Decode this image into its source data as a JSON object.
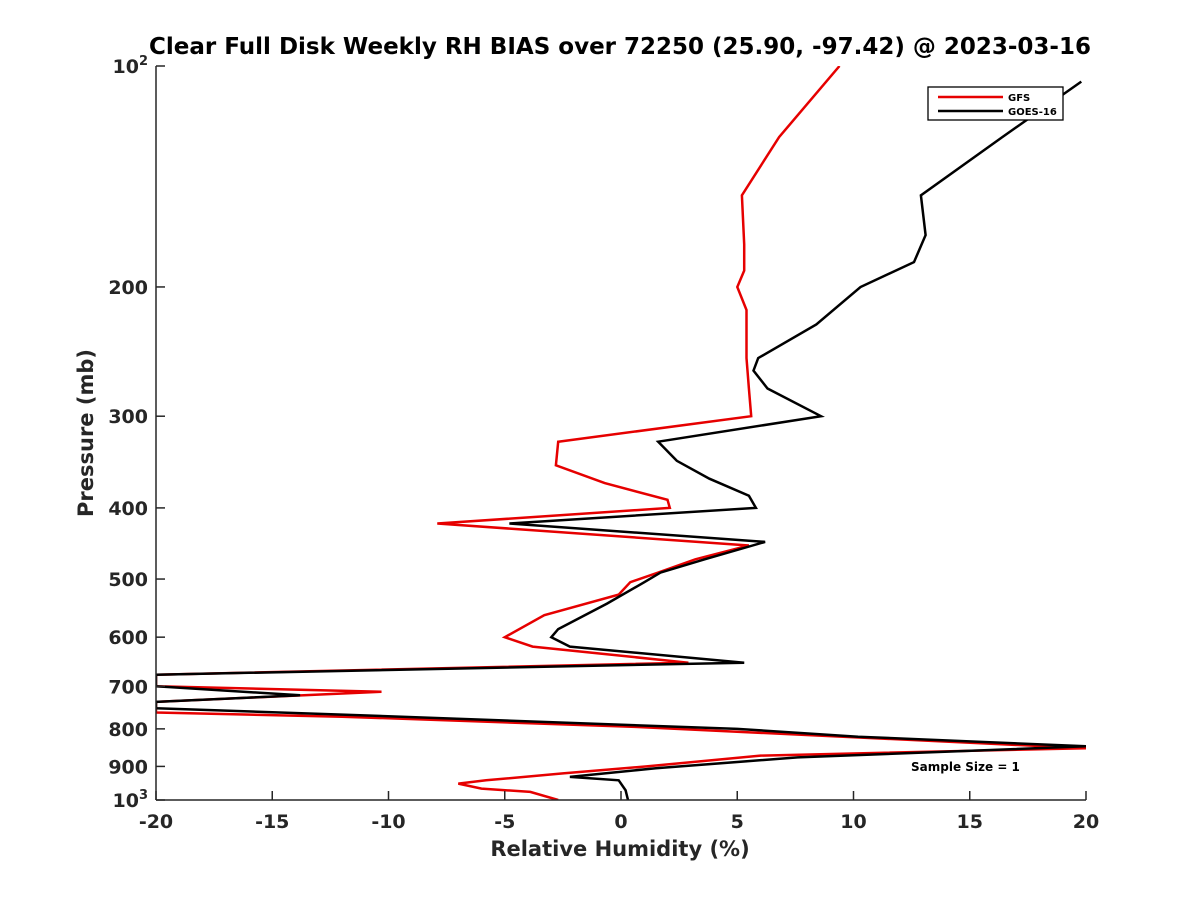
{
  "chart_data": {
    "type": "line",
    "title": "Clear Full Disk Weekly RH BIAS over 72250 (25.90, -97.42) @ 2023-03-16",
    "xlabel": "Relative Humidity (%)",
    "ylabel": "Pressure (mb)",
    "xlim": [
      -20,
      20
    ],
    "ylim": [
      100,
      1000
    ],
    "y_scale": "log",
    "y_reversed": true,
    "x_ticks": [
      "-20",
      "-15",
      "-10",
      "-5",
      "0",
      "5",
      "10",
      "15",
      "20"
    ],
    "y_ticks": [
      {
        "value": 100,
        "label": "10",
        "sup": "2"
      },
      {
        "value": 200,
        "label": "200",
        "sup": ""
      },
      {
        "value": 300,
        "label": "300",
        "sup": ""
      },
      {
        "value": 400,
        "label": "400",
        "sup": ""
      },
      {
        "value": 500,
        "label": "500",
        "sup": ""
      },
      {
        "value": 600,
        "label": "600",
        "sup": ""
      },
      {
        "value": 700,
        "label": "700",
        "sup": ""
      },
      {
        "value": 800,
        "label": "800",
        "sup": ""
      },
      {
        "value": 900,
        "label": "900",
        "sup": ""
      },
      {
        "value": 1000,
        "label": "10",
        "sup": "3"
      }
    ],
    "grid": false,
    "legend_position": "top-right",
    "annotation": "Sample Size = 1",
    "series": [
      {
        "name": "GFS",
        "color": "#e60000",
        "points": [
          [
            9.4,
            100
          ],
          [
            6.8,
            125
          ],
          [
            5.2,
            150
          ],
          [
            5.3,
            175
          ],
          [
            5.3,
            190
          ],
          [
            5.0,
            200
          ],
          [
            5.4,
            215
          ],
          [
            5.4,
            250
          ],
          [
            5.5,
            275
          ],
          [
            5.6,
            300
          ],
          [
            -2.7,
            325
          ],
          [
            -2.8,
            350
          ],
          [
            -0.7,
            370
          ],
          [
            2.0,
            390
          ],
          [
            2.1,
            400
          ],
          [
            -7.9,
            420
          ],
          [
            5.5,
            450
          ],
          [
            3.2,
            470
          ],
          [
            1.6,
            490
          ],
          [
            0.4,
            505
          ],
          [
            -0.1,
            525
          ],
          [
            -3.3,
            560
          ],
          [
            -5.0,
            600
          ],
          [
            -3.8,
            618
          ],
          [
            2.9,
            650
          ],
          [
            -20,
            675
          ],
          [
            -20,
            700
          ],
          [
            -10.3,
            712
          ],
          [
            -20,
            735
          ],
          [
            -20,
            760
          ],
          [
            -12,
            770
          ],
          [
            0.6,
            795
          ],
          [
            20,
            850
          ],
          [
            6.0,
            870
          ],
          [
            1.1,
            900
          ],
          [
            -2.5,
            920
          ],
          [
            -5.8,
            940
          ],
          [
            -7.0,
            950
          ],
          [
            -6.0,
            965
          ],
          [
            -3.9,
            975
          ],
          [
            -2.7,
            1000
          ]
        ]
      },
      {
        "name": "GOES-16",
        "color": "#000000",
        "points": [
          [
            19.8,
            105
          ],
          [
            16.4,
            125
          ],
          [
            12.9,
            150
          ],
          [
            13.1,
            170
          ],
          [
            12.6,
            185
          ],
          [
            10.3,
            200
          ],
          [
            8.4,
            225
          ],
          [
            5.9,
            250
          ],
          [
            5.7,
            260
          ],
          [
            6.3,
            275
          ],
          [
            8.6,
            300
          ],
          [
            1.6,
            325
          ],
          [
            2.4,
            345
          ],
          [
            3.8,
            365
          ],
          [
            5.5,
            385
          ],
          [
            5.8,
            400
          ],
          [
            -4.8,
            420
          ],
          [
            6.2,
            445
          ],
          [
            3.6,
            470
          ],
          [
            1.7,
            490
          ],
          [
            1.0,
            505
          ],
          [
            -0.6,
            540
          ],
          [
            -2.7,
            585
          ],
          [
            -3.0,
            600
          ],
          [
            -2.2,
            618
          ],
          [
            5.3,
            650
          ],
          [
            -20,
            675
          ],
          [
            -20,
            700
          ],
          [
            -13.8,
            720
          ],
          [
            -20,
            735
          ],
          [
            -20,
            750
          ],
          [
            -12,
            765
          ],
          [
            5.0,
            800
          ],
          [
            10.2,
            820
          ],
          [
            20,
            845
          ],
          [
            7.6,
            875
          ],
          [
            1.5,
            905
          ],
          [
            -2.2,
            930
          ],
          [
            -0.1,
            940
          ],
          [
            0.2,
            970
          ],
          [
            0.3,
            1000
          ]
        ]
      }
    ]
  }
}
